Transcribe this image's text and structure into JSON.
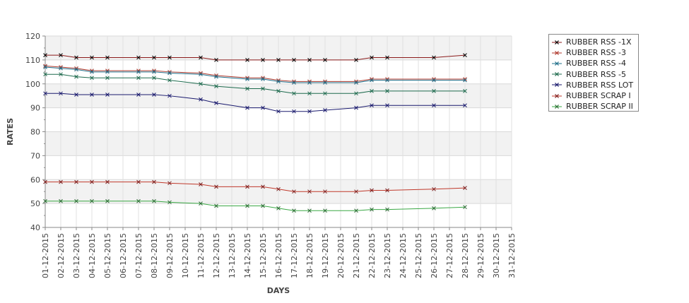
{
  "chart_data": {
    "type": "line",
    "xlabel": "DAYS",
    "ylabel": "RATES",
    "ylim": [
      40,
      120
    ],
    "yticks": [
      40,
      50,
      60,
      70,
      80,
      90,
      100,
      110,
      120
    ],
    "grid": true,
    "legend_position": "top-right, outside plot",
    "categories": [
      "01-12-2015",
      "02-12-2015",
      "03-12-2015",
      "04-12-2015",
      "05-12-2015",
      "06-12-2015",
      "07-12-2015",
      "08-12-2015",
      "09-12-2015",
      "10-12-2015",
      "11-12-2015",
      "12-12-2015",
      "13-12-2015",
      "14-12-2015",
      "15-12-2015",
      "16-12-2015",
      "17-12-2015",
      "18-12-2015",
      "19-12-2015",
      "20-12-2015",
      "21-12-2015",
      "22-12-2015",
      "23-12-2015",
      "24-12-2015",
      "25-12-2015",
      "26-12-2015",
      "27-12-2015",
      "28-12-2015",
      "29-12-2015",
      "30-12-2015",
      "31-12-2015"
    ],
    "series": [
      {
        "name": "RUBBER RSS -1X",
        "color": "#8b1a1a",
        "marker_color": "#000000",
        "points": [
          [
            0,
            112
          ],
          [
            1,
            112
          ],
          [
            2,
            111
          ],
          [
            3,
            111
          ],
          [
            4,
            111
          ],
          [
            6,
            111
          ],
          [
            7,
            111
          ],
          [
            8,
            111
          ],
          [
            10,
            111
          ],
          [
            11,
            110
          ],
          [
            13,
            110
          ],
          [
            14,
            110
          ],
          [
            15,
            110
          ],
          [
            16,
            110
          ],
          [
            17,
            110
          ],
          [
            18,
            110
          ],
          [
            20,
            110
          ],
          [
            21,
            111
          ],
          [
            22,
            111
          ],
          [
            25,
            111
          ],
          [
            27,
            112
          ]
        ]
      },
      {
        "name": "RUBBER RSS -3",
        "color": "#b03a2e",
        "marker_color": "#b03a2e",
        "points": [
          [
            0,
            107.5
          ],
          [
            1,
            107
          ],
          [
            2,
            106.5
          ],
          [
            3,
            105.5
          ],
          [
            4,
            105.5
          ],
          [
            6,
            105.5
          ],
          [
            7,
            105.5
          ],
          [
            8,
            105
          ],
          [
            10,
            104.5
          ],
          [
            11,
            103.5
          ],
          [
            13,
            102.5
          ],
          [
            14,
            102.5
          ],
          [
            15,
            101.5
          ],
          [
            16,
            101
          ],
          [
            17,
            101
          ],
          [
            18,
            101
          ],
          [
            20,
            101
          ],
          [
            21,
            102
          ],
          [
            22,
            102
          ],
          [
            25,
            102
          ],
          [
            27,
            102
          ]
        ]
      },
      {
        "name": "RUBBER RSS -4",
        "color": "#1f6f8b",
        "marker_color": "#1f6f8b",
        "points": [
          [
            0,
            107
          ],
          [
            1,
            106.5
          ],
          [
            2,
            106
          ],
          [
            3,
            105
          ],
          [
            4,
            105
          ],
          [
            6,
            105
          ],
          [
            7,
            105
          ],
          [
            8,
            104.5
          ],
          [
            10,
            104
          ],
          [
            11,
            103
          ],
          [
            13,
            102
          ],
          [
            14,
            102
          ],
          [
            15,
            101
          ],
          [
            16,
            100.5
          ],
          [
            17,
            100.5
          ],
          [
            18,
            100.5
          ],
          [
            20,
            100.5
          ],
          [
            21,
            101.5
          ],
          [
            22,
            101.5
          ],
          [
            25,
            101.5
          ],
          [
            27,
            101.5
          ]
        ]
      },
      {
        "name": "RUBBER RSS -5",
        "color": "#1e6b4e",
        "marker_color": "#1e6b4e",
        "points": [
          [
            0,
            104
          ],
          [
            1,
            104
          ],
          [
            2,
            103
          ],
          [
            3,
            102.5
          ],
          [
            4,
            102.5
          ],
          [
            6,
            102.5
          ],
          [
            7,
            102.5
          ],
          [
            8,
            101.5
          ],
          [
            10,
            100
          ],
          [
            11,
            99
          ],
          [
            13,
            98
          ],
          [
            14,
            98
          ],
          [
            15,
            97
          ],
          [
            16,
            96
          ],
          [
            17,
            96
          ],
          [
            18,
            96
          ],
          [
            20,
            96
          ],
          [
            21,
            97
          ],
          [
            22,
            97
          ],
          [
            25,
            97
          ],
          [
            27,
            97
          ]
        ]
      },
      {
        "name": "RUBBER RSS LOT",
        "color": "#1a1a6e",
        "marker_color": "#1a1a6e",
        "points": [
          [
            0,
            96
          ],
          [
            1,
            96
          ],
          [
            2,
            95.5
          ],
          [
            3,
            95.5
          ],
          [
            4,
            95.5
          ],
          [
            6,
            95.5
          ],
          [
            7,
            95.5
          ],
          [
            8,
            95
          ],
          [
            10,
            93.5
          ],
          [
            11,
            92
          ],
          [
            13,
            90
          ],
          [
            14,
            90
          ],
          [
            15,
            88.5
          ],
          [
            16,
            88.5
          ],
          [
            17,
            88.5
          ],
          [
            18,
            89
          ],
          [
            20,
            90
          ],
          [
            21,
            91
          ],
          [
            22,
            91
          ],
          [
            25,
            91
          ],
          [
            27,
            91
          ]
        ]
      },
      {
        "name": "RUBBER SCRAP I",
        "color": "#c0392b",
        "marker_color": "#7a1f1f",
        "points": [
          [
            0,
            59
          ],
          [
            1,
            59
          ],
          [
            2,
            59
          ],
          [
            3,
            59
          ],
          [
            4,
            59
          ],
          [
            6,
            59
          ],
          [
            7,
            59
          ],
          [
            8,
            58.5
          ],
          [
            10,
            58
          ],
          [
            11,
            57
          ],
          [
            13,
            57
          ],
          [
            14,
            57
          ],
          [
            15,
            56
          ],
          [
            16,
            55
          ],
          [
            17,
            55
          ],
          [
            18,
            55
          ],
          [
            20,
            55
          ],
          [
            21,
            55.5
          ],
          [
            22,
            55.5
          ],
          [
            25,
            56
          ],
          [
            27,
            56.5
          ]
        ]
      },
      {
        "name": "RUBBER SCRAP II",
        "color": "#3aa845",
        "marker_color": "#2d6b35",
        "points": [
          [
            0,
            51
          ],
          [
            1,
            51
          ],
          [
            2,
            51
          ],
          [
            3,
            51
          ],
          [
            4,
            51
          ],
          [
            6,
            51
          ],
          [
            7,
            51
          ],
          [
            8,
            50.5
          ],
          [
            10,
            50
          ],
          [
            11,
            49
          ],
          [
            13,
            49
          ],
          [
            14,
            49
          ],
          [
            15,
            48
          ],
          [
            16,
            47
          ],
          [
            17,
            47
          ],
          [
            18,
            47
          ],
          [
            20,
            47
          ],
          [
            21,
            47.5
          ],
          [
            22,
            47.5
          ],
          [
            25,
            48
          ],
          [
            27,
            48.5
          ]
        ]
      }
    ]
  }
}
